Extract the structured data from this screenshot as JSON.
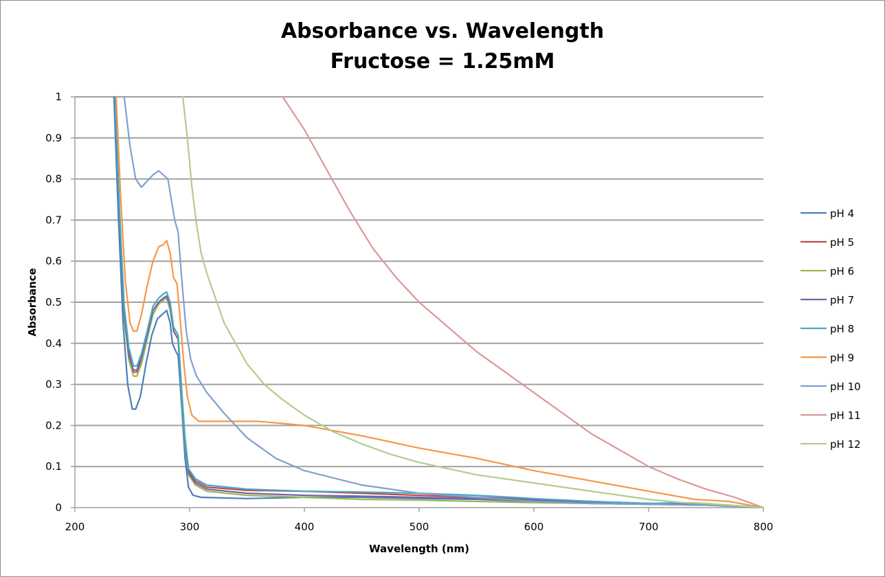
{
  "chart_data": {
    "type": "line",
    "title": "Absorbance vs. Wavelength",
    "subtitle": "Fructose = 1.25mM",
    "xlabel": "Wavelength (nm)",
    "ylabel": "Absorbance",
    "xlim": [
      200,
      800
    ],
    "ylim": [
      0,
      1
    ],
    "xticks": [
      "200",
      "300",
      "400",
      "500",
      "600",
      "700",
      "800"
    ],
    "yticks": [
      "0",
      "0.1",
      "0.2",
      "0.3",
      "0.4",
      "0.5",
      "0.6",
      "0.7",
      "0.8",
      "0.9",
      "1"
    ],
    "grid": "horizontal",
    "legend_position": "right",
    "series": [
      {
        "name": "pH 4",
        "color": "#4a7ebb",
        "points": [
          [
            234,
            1.0
          ],
          [
            238,
            0.7
          ],
          [
            242,
            0.45
          ],
          [
            246,
            0.3
          ],
          [
            250,
            0.24
          ],
          [
            253,
            0.24
          ],
          [
            257,
            0.27
          ],
          [
            262,
            0.35
          ],
          [
            267,
            0.42
          ],
          [
            272,
            0.46
          ],
          [
            276,
            0.47
          ],
          [
            280,
            0.48
          ],
          [
            283,
            0.45
          ],
          [
            285,
            0.4
          ],
          [
            288,
            0.38
          ],
          [
            290,
            0.37
          ],
          [
            293,
            0.25
          ],
          [
            296,
            0.12
          ],
          [
            299,
            0.05
          ],
          [
            303,
            0.03
          ],
          [
            310,
            0.025
          ],
          [
            350,
            0.022
          ],
          [
            400,
            0.025
          ],
          [
            450,
            0.025
          ],
          [
            500,
            0.022
          ],
          [
            550,
            0.02
          ],
          [
            600,
            0.015
          ],
          [
            650,
            0.01
          ],
          [
            700,
            0.008
          ],
          [
            750,
            0.006
          ],
          [
            800,
            0.0
          ]
        ]
      },
      {
        "name": "pH 5",
        "color": "#be4b48",
        "points": [
          [
            235,
            1.0
          ],
          [
            239,
            0.7
          ],
          [
            243,
            0.48
          ],
          [
            247,
            0.38
          ],
          [
            251,
            0.33
          ],
          [
            254,
            0.33
          ],
          [
            258,
            0.36
          ],
          [
            263,
            0.42
          ],
          [
            268,
            0.48
          ],
          [
            273,
            0.5
          ],
          [
            277,
            0.51
          ],
          [
            280,
            0.515
          ],
          [
            283,
            0.49
          ],
          [
            286,
            0.43
          ],
          [
            290,
            0.41
          ],
          [
            293,
            0.28
          ],
          [
            296,
            0.16
          ],
          [
            299,
            0.09
          ],
          [
            305,
            0.065
          ],
          [
            315,
            0.05
          ],
          [
            350,
            0.042
          ],
          [
            400,
            0.04
          ],
          [
            450,
            0.035
          ],
          [
            500,
            0.03
          ],
          [
            550,
            0.025
          ],
          [
            600,
            0.02
          ],
          [
            650,
            0.015
          ],
          [
            700,
            0.01
          ],
          [
            750,
            0.008
          ],
          [
            800,
            0.0
          ]
        ]
      },
      {
        "name": "pH 6",
        "color": "#98b954",
        "points": [
          [
            235,
            1.0
          ],
          [
            239,
            0.7
          ],
          [
            243,
            0.46
          ],
          [
            247,
            0.36
          ],
          [
            251,
            0.32
          ],
          [
            254,
            0.32
          ],
          [
            258,
            0.35
          ],
          [
            263,
            0.41
          ],
          [
            268,
            0.47
          ],
          [
            273,
            0.495
          ],
          [
            277,
            0.505
          ],
          [
            280,
            0.51
          ],
          [
            283,
            0.48
          ],
          [
            286,
            0.43
          ],
          [
            290,
            0.41
          ],
          [
            293,
            0.27
          ],
          [
            296,
            0.15
          ],
          [
            299,
            0.08
          ],
          [
            305,
            0.055
          ],
          [
            315,
            0.04
          ],
          [
            350,
            0.03
          ],
          [
            400,
            0.025
          ],
          [
            450,
            0.02
          ],
          [
            500,
            0.018
          ],
          [
            550,
            0.015
          ],
          [
            600,
            0.012
          ],
          [
            650,
            0.01
          ],
          [
            700,
            0.008
          ],
          [
            750,
            0.006
          ],
          [
            800,
            0.0
          ]
        ]
      },
      {
        "name": "pH 7",
        "color": "#7d60a0",
        "points": [
          [
            235,
            1.0
          ],
          [
            239,
            0.7
          ],
          [
            243,
            0.47
          ],
          [
            247,
            0.37
          ],
          [
            251,
            0.335
          ],
          [
            254,
            0.335
          ],
          [
            258,
            0.365
          ],
          [
            263,
            0.42
          ],
          [
            268,
            0.48
          ],
          [
            273,
            0.5
          ],
          [
            277,
            0.51
          ],
          [
            280,
            0.515
          ],
          [
            283,
            0.49
          ],
          [
            286,
            0.43
          ],
          [
            290,
            0.41
          ],
          [
            293,
            0.28
          ],
          [
            296,
            0.16
          ],
          [
            299,
            0.085
          ],
          [
            305,
            0.06
          ],
          [
            315,
            0.045
          ],
          [
            350,
            0.035
          ],
          [
            400,
            0.03
          ],
          [
            450,
            0.028
          ],
          [
            500,
            0.025
          ],
          [
            550,
            0.022
          ],
          [
            600,
            0.018
          ],
          [
            650,
            0.012
          ],
          [
            700,
            0.01
          ],
          [
            750,
            0.008
          ],
          [
            800,
            0.0
          ]
        ]
      },
      {
        "name": "pH 8",
        "color": "#46aac5",
        "points": [
          [
            235,
            1.0
          ],
          [
            239,
            0.72
          ],
          [
            243,
            0.49
          ],
          [
            247,
            0.39
          ],
          [
            251,
            0.345
          ],
          [
            254,
            0.345
          ],
          [
            258,
            0.375
          ],
          [
            263,
            0.43
          ],
          [
            268,
            0.49
          ],
          [
            273,
            0.51
          ],
          [
            277,
            0.52
          ],
          [
            280,
            0.525
          ],
          [
            283,
            0.5
          ],
          [
            286,
            0.44
          ],
          [
            290,
            0.42
          ],
          [
            293,
            0.29
          ],
          [
            296,
            0.17
          ],
          [
            299,
            0.095
          ],
          [
            305,
            0.07
          ],
          [
            315,
            0.055
          ],
          [
            350,
            0.045
          ],
          [
            400,
            0.04
          ],
          [
            450,
            0.038
          ],
          [
            500,
            0.035
          ],
          [
            550,
            0.03
          ],
          [
            600,
            0.022
          ],
          [
            650,
            0.015
          ],
          [
            700,
            0.01
          ],
          [
            730,
            0.012
          ],
          [
            750,
            0.01
          ],
          [
            800,
            0.0
          ]
        ]
      },
      {
        "name": "pH 9",
        "color": "#f79646",
        "points": [
          [
            236,
            1.0
          ],
          [
            240,
            0.75
          ],
          [
            244,
            0.55
          ],
          [
            248,
            0.45
          ],
          [
            251,
            0.43
          ],
          [
            254,
            0.43
          ],
          [
            258,
            0.47
          ],
          [
            263,
            0.54
          ],
          [
            268,
            0.6
          ],
          [
            273,
            0.635
          ],
          [
            277,
            0.64
          ],
          [
            280,
            0.65
          ],
          [
            283,
            0.62
          ],
          [
            286,
            0.56
          ],
          [
            289,
            0.545
          ],
          [
            292,
            0.45
          ],
          [
            295,
            0.35
          ],
          [
            298,
            0.27
          ],
          [
            302,
            0.225
          ],
          [
            308,
            0.21
          ],
          [
            330,
            0.21
          ],
          [
            360,
            0.21
          ],
          [
            380,
            0.205
          ],
          [
            400,
            0.2
          ],
          [
            450,
            0.175
          ],
          [
            500,
            0.145
          ],
          [
            550,
            0.12
          ],
          [
            600,
            0.09
          ],
          [
            650,
            0.065
          ],
          [
            700,
            0.04
          ],
          [
            740,
            0.02
          ],
          [
            770,
            0.015
          ],
          [
            800,
            0.0
          ]
        ]
      },
      {
        "name": "pH 10",
        "color": "#7f9fcf",
        "points": [
          [
            243,
            1.0
          ],
          [
            248,
            0.88
          ],
          [
            253,
            0.8
          ],
          [
            258,
            0.78
          ],
          [
            263,
            0.795
          ],
          [
            268,
            0.81
          ],
          [
            273,
            0.82
          ],
          [
            277,
            0.81
          ],
          [
            281,
            0.8
          ],
          [
            284,
            0.75
          ],
          [
            287,
            0.7
          ],
          [
            290,
            0.67
          ],
          [
            293,
            0.56
          ],
          [
            297,
            0.43
          ],
          [
            301,
            0.36
          ],
          [
            306,
            0.32
          ],
          [
            315,
            0.28
          ],
          [
            330,
            0.23
          ],
          [
            350,
            0.17
          ],
          [
            375,
            0.12
          ],
          [
            400,
            0.09
          ],
          [
            450,
            0.055
          ],
          [
            500,
            0.035
          ],
          [
            550,
            0.025
          ],
          [
            600,
            0.015
          ],
          [
            650,
            0.01
          ],
          [
            700,
            0.008
          ],
          [
            750,
            0.006
          ],
          [
            800,
            0.0
          ]
        ]
      },
      {
        "name": "pH 11",
        "color": "#d99795",
        "points": [
          [
            381,
            1.0
          ],
          [
            400,
            0.92
          ],
          [
            420,
            0.82
          ],
          [
            440,
            0.72
          ],
          [
            460,
            0.63
          ],
          [
            480,
            0.56
          ],
          [
            500,
            0.5
          ],
          [
            525,
            0.44
          ],
          [
            550,
            0.38
          ],
          [
            575,
            0.33
          ],
          [
            600,
            0.28
          ],
          [
            625,
            0.23
          ],
          [
            650,
            0.18
          ],
          [
            675,
            0.14
          ],
          [
            700,
            0.1
          ],
          [
            725,
            0.07
          ],
          [
            750,
            0.045
          ],
          [
            775,
            0.025
          ],
          [
            800,
            0.0
          ]
        ]
      },
      {
        "name": "pH 12",
        "color": "#b3cc8c",
        "points": [
          [
            294,
            1.0
          ],
          [
            298,
            0.9
          ],
          [
            302,
            0.78
          ],
          [
            306,
            0.69
          ],
          [
            310,
            0.62
          ],
          [
            315,
            0.57
          ],
          [
            320,
            0.53
          ],
          [
            325,
            0.49
          ],
          [
            330,
            0.45
          ],
          [
            340,
            0.4
          ],
          [
            350,
            0.35
          ],
          [
            365,
            0.3
          ],
          [
            380,
            0.265
          ],
          [
            400,
            0.225
          ],
          [
            425,
            0.185
          ],
          [
            450,
            0.155
          ],
          [
            475,
            0.13
          ],
          [
            500,
            0.11
          ],
          [
            550,
            0.08
          ],
          [
            600,
            0.06
          ],
          [
            650,
            0.04
          ],
          [
            700,
            0.02
          ],
          [
            730,
            0.012
          ],
          [
            750,
            0.01
          ],
          [
            800,
            0.0
          ]
        ]
      }
    ]
  }
}
